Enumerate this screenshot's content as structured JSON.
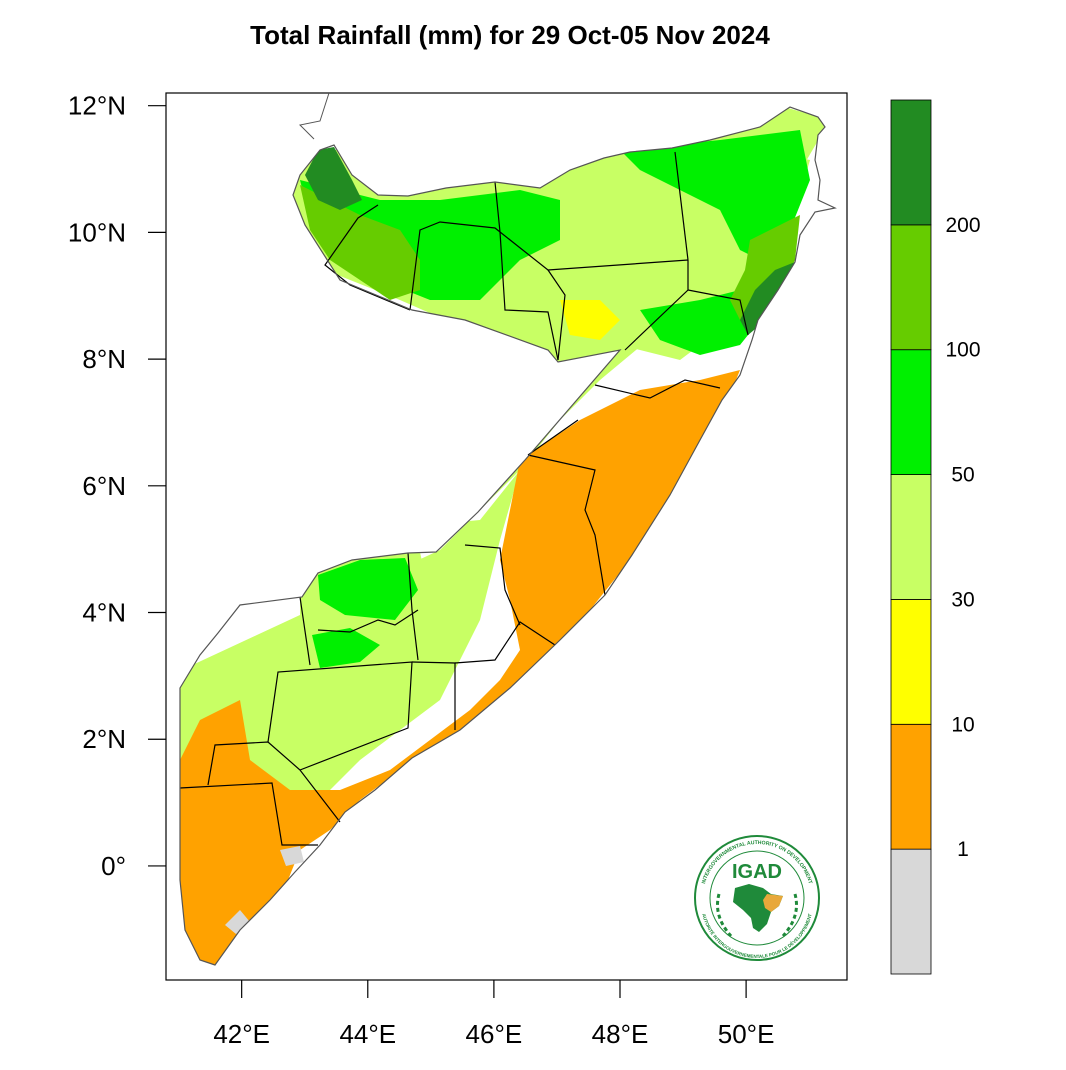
{
  "title": "Total Rainfall (mm) for 29 Oct-05 Nov 2024",
  "map": {
    "lon_range": [
      40.8,
      51.6
    ],
    "lat_range": [
      -1.8,
      12.2
    ],
    "lon_ticks": [
      42,
      44,
      46,
      48,
      50
    ],
    "lat_ticks": [
      0,
      2,
      4,
      6,
      8,
      10,
      12
    ],
    "lon_tick_labels": [
      "42°E",
      "44°E",
      "46°E",
      "48°E",
      "50°E"
    ],
    "lat_tick_labels": [
      "0°",
      "2°N",
      "4°N",
      "6°N",
      "8°N",
      "10°N",
      "12°N"
    ]
  },
  "colorbar": {
    "bins": [
      {
        "label": "",
        "color": "#d8d8d8"
      },
      {
        "label": "1",
        "color": "#ffa200"
      },
      {
        "label": "10",
        "color": "#ffff00"
      },
      {
        "label": "30",
        "color": "#c8ff64"
      },
      {
        "label": "50",
        "color": "#00f000"
      },
      {
        "label": "100",
        "color": "#66cc00"
      },
      {
        "label": "200",
        "color": "#228b22"
      }
    ]
  },
  "logo": {
    "acronym": "IGAD",
    "ring_text_top": "INTERGOVERNMENTAL AUTHORITY ON DEVELOPMENT",
    "ring_text_bottom": "AUTORITÉ INTERGOUVERNEMENTALE POUR LE DÉVELOPPEMENT",
    "brand_color": "#1f8a3a",
    "accent_color": "#e8a83a"
  }
}
